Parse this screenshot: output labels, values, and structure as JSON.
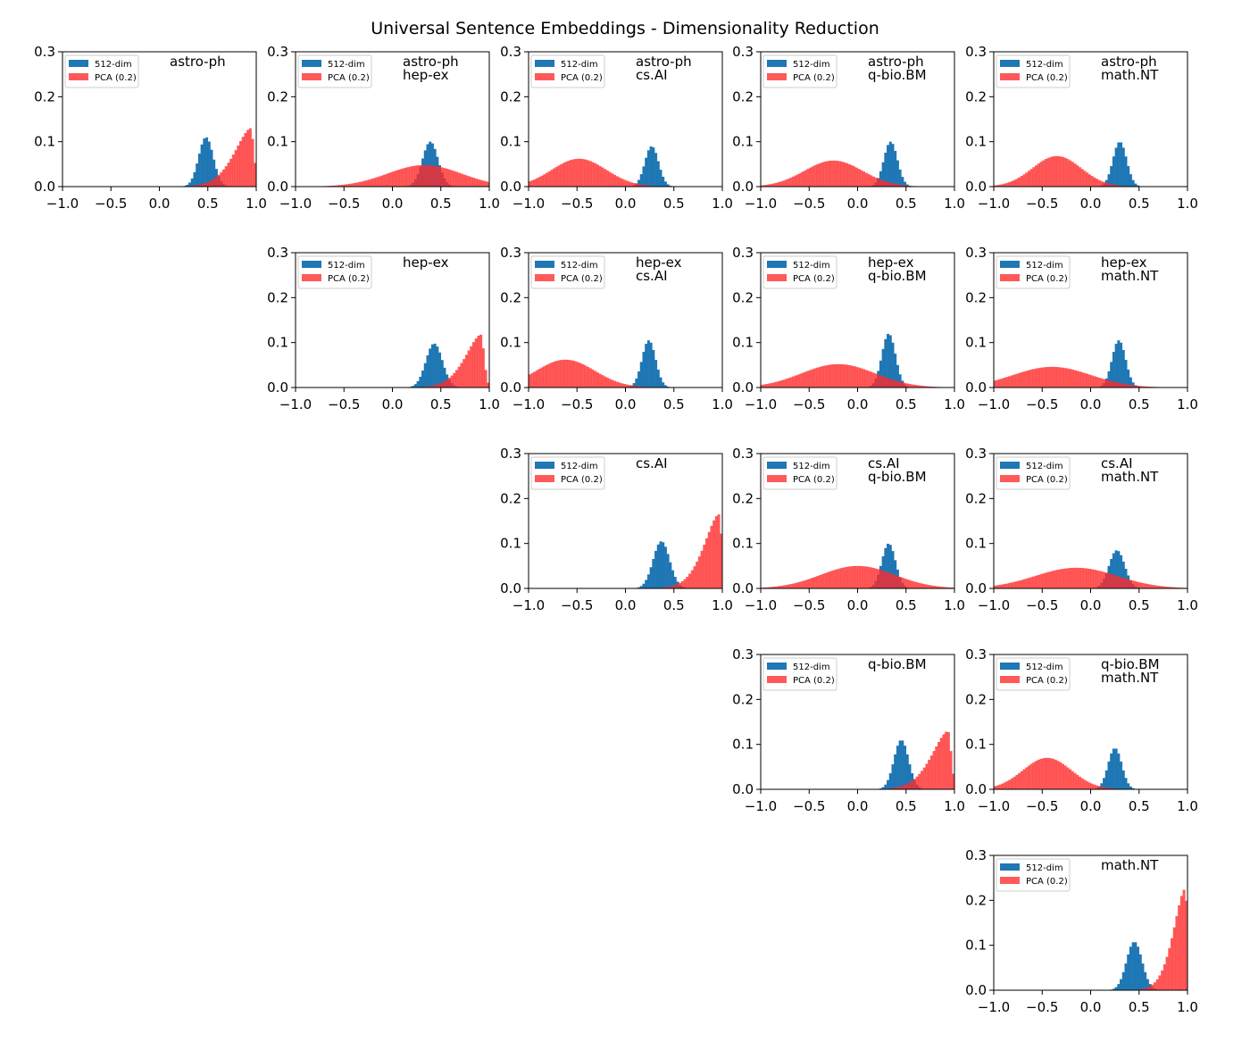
{
  "figure": {
    "title": "Universal Sentence Embeddings - Dimensionality Reduction",
    "colors": {
      "series_512": "#1f77b4",
      "series_pca": "#ff2a2a",
      "axes": "#000000"
    }
  },
  "chart_data": [
    {
      "type": "bar",
      "row": 0,
      "col": 0,
      "label_lines": [
        "astro-ph"
      ],
      "xlim": [
        -1.0,
        1.0
      ],
      "ylim": [
        0,
        0.3
      ],
      "xticks": [
        "−1.0",
        "−0.5",
        "0.0",
        "0.5",
        "1.0"
      ],
      "yticks": [
        "0.0",
        "0.1",
        "0.2",
        "0.3"
      ],
      "legend": [
        "512-dim",
        "PCA (0.2)"
      ],
      "series": [
        {
          "name": "512-dim",
          "kind": "gauss",
          "mu": 0.48,
          "sigma": 0.075,
          "peak": 0.11
        },
        {
          "name": "PCA (0.2)",
          "kind": "skew",
          "mode": 0.94,
          "width": 0.4,
          "peak": 0.13
        }
      ]
    },
    {
      "type": "bar",
      "row": 0,
      "col": 1,
      "label_lines": [
        "astro-ph",
        "hep-ex"
      ],
      "xlim": [
        -1.0,
        1.0
      ],
      "ylim": [
        0,
        0.3
      ],
      "xticks": [
        "−1.0",
        "−0.5",
        "0.0",
        "0.5",
        "1.0"
      ],
      "yticks": [
        "0.0",
        "0.1",
        "0.2",
        "0.3"
      ],
      "legend": [
        "512-dim",
        "PCA (0.2)"
      ],
      "series": [
        {
          "name": "512-dim",
          "kind": "gauss",
          "mu": 0.39,
          "sigma": 0.08,
          "peak": 0.1
        },
        {
          "name": "PCA (0.2)",
          "kind": "gauss",
          "mu": 0.33,
          "sigma": 0.38,
          "peak": 0.048
        }
      ]
    },
    {
      "type": "bar",
      "row": 0,
      "col": 2,
      "label_lines": [
        "astro-ph",
        "cs.AI"
      ],
      "xlim": [
        -1.0,
        1.0
      ],
      "ylim": [
        0,
        0.3
      ],
      "xticks": [
        "−1.0",
        "−0.5",
        "0.0",
        "0.5",
        "1.0"
      ],
      "yticks": [
        "0.0",
        "0.1",
        "0.2",
        "0.3"
      ],
      "legend": [
        "512-dim",
        "PCA (0.2)"
      ],
      "series": [
        {
          "name": "512-dim",
          "kind": "gauss",
          "mu": 0.27,
          "sigma": 0.07,
          "peak": 0.09
        },
        {
          "name": "PCA (0.2)",
          "kind": "gauss",
          "mu": -0.48,
          "sigma": 0.28,
          "peak": 0.062
        }
      ]
    },
    {
      "type": "bar",
      "row": 0,
      "col": 3,
      "label_lines": [
        "astro-ph",
        "q-bio.BM"
      ],
      "xlim": [
        -1.0,
        1.0
      ],
      "ylim": [
        0,
        0.3
      ],
      "xticks": [
        "−1.0",
        "−0.5",
        "0.0",
        "0.5",
        "1.0"
      ],
      "yticks": [
        "0.0",
        "0.1",
        "0.2",
        "0.3"
      ],
      "legend": [
        "512-dim",
        "PCA (0.2)"
      ],
      "series": [
        {
          "name": "512-dim",
          "kind": "gauss",
          "mu": 0.34,
          "sigma": 0.07,
          "peak": 0.1
        },
        {
          "name": "PCA (0.2)",
          "kind": "gauss",
          "mu": -0.25,
          "sigma": 0.3,
          "peak": 0.058
        }
      ]
    },
    {
      "type": "bar",
      "row": 0,
      "col": 4,
      "label_lines": [
        "astro-ph",
        "math.NT"
      ],
      "xlim": [
        -1.0,
        1.0
      ],
      "ylim": [
        0,
        0.3
      ],
      "xticks": [
        "−1.0",
        "−0.5",
        "0.0",
        "0.5",
        "1.0"
      ],
      "yticks": [
        "0.0",
        "0.1",
        "0.2",
        "0.3"
      ],
      "legend": [
        "512-dim",
        "PCA (0.2)"
      ],
      "series": [
        {
          "name": "512-dim",
          "kind": "gauss",
          "mu": 0.3,
          "sigma": 0.07,
          "peak": 0.1
        },
        {
          "name": "PCA (0.2)",
          "kind": "gauss",
          "mu": -0.35,
          "sigma": 0.25,
          "peak": 0.068
        }
      ]
    },
    {
      "type": "bar",
      "row": 1,
      "col": 1,
      "label_lines": [
        "hep-ex"
      ],
      "xlim": [
        -1.0,
        1.0
      ],
      "ylim": [
        0,
        0.3
      ],
      "xticks": [
        "−1.0",
        "−0.5",
        "0.0",
        "0.5",
        "1.0"
      ],
      "yticks": [
        "0.0",
        "0.1",
        "0.2",
        "0.3"
      ],
      "legend": [
        "512-dim",
        "PCA (0.2)"
      ],
      "series": [
        {
          "name": "512-dim",
          "kind": "gauss",
          "mu": 0.43,
          "sigma": 0.085,
          "peak": 0.098
        },
        {
          "name": "PCA (0.2)",
          "kind": "skew",
          "mode": 0.91,
          "width": 0.38,
          "peak": 0.118
        }
      ]
    },
    {
      "type": "bar",
      "row": 1,
      "col": 2,
      "label_lines": [
        "hep-ex",
        "cs.AI"
      ],
      "xlim": [
        -1.0,
        1.0
      ],
      "ylim": [
        0,
        0.3
      ],
      "xticks": [
        "−1.0",
        "−0.5",
        "0.0",
        "0.5",
        "1.0"
      ],
      "yticks": [
        "0.0",
        "0.1",
        "0.2",
        "0.3"
      ],
      "legend": [
        "512-dim",
        "PCA (0.2)"
      ],
      "series": [
        {
          "name": "512-dim",
          "kind": "gauss",
          "mu": 0.24,
          "sigma": 0.07,
          "peak": 0.105
        },
        {
          "name": "PCA (0.2)",
          "kind": "gauss",
          "mu": -0.62,
          "sigma": 0.3,
          "peak": 0.062
        }
      ]
    },
    {
      "type": "bar",
      "row": 1,
      "col": 3,
      "label_lines": [
        "hep-ex",
        "q-bio.BM"
      ],
      "xlim": [
        -1.0,
        1.0
      ],
      "ylim": [
        0,
        0.3
      ],
      "xticks": [
        "−1.0",
        "−0.5",
        "0.0",
        "0.5",
        "1.0"
      ],
      "yticks": [
        "0.0",
        "0.1",
        "0.2",
        "0.3"
      ],
      "legend": [
        "512-dim",
        "PCA (0.2)"
      ],
      "series": [
        {
          "name": "512-dim",
          "kind": "gauss",
          "mu": 0.32,
          "sigma": 0.07,
          "peak": 0.12
        },
        {
          "name": "PCA (0.2)",
          "kind": "gauss",
          "mu": -0.2,
          "sigma": 0.38,
          "peak": 0.052
        }
      ]
    },
    {
      "type": "bar",
      "row": 1,
      "col": 4,
      "label_lines": [
        "hep-ex",
        "math.NT"
      ],
      "xlim": [
        -1.0,
        1.0
      ],
      "ylim": [
        0,
        0.3
      ],
      "xticks": [
        "−1.0",
        "−0.5",
        "0.0",
        "0.5",
        "1.0"
      ],
      "yticks": [
        "0.0",
        "0.1",
        "0.2",
        "0.3"
      ],
      "legend": [
        "512-dim",
        "PCA (0.2)"
      ],
      "series": [
        {
          "name": "512-dim",
          "kind": "gauss",
          "mu": 0.29,
          "sigma": 0.07,
          "peak": 0.105
        },
        {
          "name": "PCA (0.2)",
          "kind": "gauss",
          "mu": -0.4,
          "sigma": 0.4,
          "peak": 0.046
        }
      ]
    },
    {
      "type": "bar",
      "row": 2,
      "col": 2,
      "label_lines": [
        "cs.AI"
      ],
      "xlim": [
        -1.0,
        1.0
      ],
      "ylim": [
        0,
        0.3
      ],
      "xticks": [
        "−1.0",
        "−0.5",
        "0.0",
        "0.5",
        "1.0"
      ],
      "yticks": [
        "0.0",
        "0.1",
        "0.2",
        "0.3"
      ],
      "legend": [
        "512-dim",
        "PCA (0.2)"
      ],
      "series": [
        {
          "name": "512-dim",
          "kind": "gauss",
          "mu": 0.37,
          "sigma": 0.085,
          "peak": 0.105
        },
        {
          "name": "PCA (0.2)",
          "kind": "skew",
          "mode": 0.96,
          "width": 0.36,
          "peak": 0.165
        }
      ]
    },
    {
      "type": "bar",
      "row": 2,
      "col": 3,
      "label_lines": [
        "cs.AI",
        "q-bio.BM"
      ],
      "xlim": [
        -1.0,
        1.0
      ],
      "ylim": [
        0,
        0.3
      ],
      "xticks": [
        "−1.0",
        "−0.5",
        "0.0",
        "0.5",
        "1.0"
      ],
      "yticks": [
        "0.0",
        "0.1",
        "0.2",
        "0.3"
      ],
      "legend": [
        "512-dim",
        "PCA (0.2)"
      ],
      "series": [
        {
          "name": "512-dim",
          "kind": "gauss",
          "mu": 0.32,
          "sigma": 0.07,
          "peak": 0.1
        },
        {
          "name": "PCA (0.2)",
          "kind": "gauss",
          "mu": 0.0,
          "sigma": 0.38,
          "peak": 0.05
        }
      ]
    },
    {
      "type": "bar",
      "row": 2,
      "col": 4,
      "label_lines": [
        "cs.AI",
        "math.NT"
      ],
      "xlim": [
        -1.0,
        1.0
      ],
      "ylim": [
        0,
        0.3
      ],
      "xticks": [
        "−1.0",
        "−0.5",
        "0.0",
        "0.5",
        "1.0"
      ],
      "yticks": [
        "0.0",
        "0.1",
        "0.2",
        "0.3"
      ],
      "legend": [
        "512-dim",
        "PCA (0.2)"
      ],
      "series": [
        {
          "name": "512-dim",
          "kind": "gauss",
          "mu": 0.27,
          "sigma": 0.08,
          "peak": 0.085
        },
        {
          "name": "PCA (0.2)",
          "kind": "gauss",
          "mu": -0.15,
          "sigma": 0.42,
          "peak": 0.046
        }
      ]
    },
    {
      "type": "bar",
      "row": 3,
      "col": 3,
      "label_lines": [
        "q-bio.BM"
      ],
      "xlim": [
        -1.0,
        1.0
      ],
      "ylim": [
        0,
        0.3
      ],
      "xticks": [
        "−1.0",
        "−0.5",
        "0.0",
        "0.5",
        "1.0"
      ],
      "yticks": [
        "0.0",
        "0.1",
        "0.2",
        "0.3"
      ],
      "legend": [
        "512-dim",
        "PCA (0.2)"
      ],
      "series": [
        {
          "name": "512-dim",
          "kind": "gauss",
          "mu": 0.45,
          "sigma": 0.075,
          "peak": 0.11
        },
        {
          "name": "PCA (0.2)",
          "kind": "skew",
          "mode": 0.93,
          "width": 0.4,
          "peak": 0.13
        }
      ]
    },
    {
      "type": "bar",
      "row": 3,
      "col": 4,
      "label_lines": [
        "q-bio.BM",
        "math.NT"
      ],
      "xlim": [
        -1.0,
        1.0
      ],
      "ylim": [
        0,
        0.3
      ],
      "xticks": [
        "−1.0",
        "−0.5",
        "0.0",
        "0.5",
        "1.0"
      ],
      "yticks": [
        "0.0",
        "0.1",
        "0.2",
        "0.3"
      ],
      "legend": [
        "512-dim",
        "PCA (0.2)"
      ],
      "series": [
        {
          "name": "512-dim",
          "kind": "gauss",
          "mu": 0.25,
          "sigma": 0.07,
          "peak": 0.092
        },
        {
          "name": "PCA (0.2)",
          "kind": "gauss",
          "mu": -0.45,
          "sigma": 0.25,
          "peak": 0.07
        }
      ]
    },
    {
      "type": "bar",
      "row": 4,
      "col": 4,
      "label_lines": [
        "math.NT"
      ],
      "xlim": [
        -1.0,
        1.0
      ],
      "ylim": [
        0,
        0.3
      ],
      "xticks": [
        "−1.0",
        "−0.5",
        "0.0",
        "0.5",
        "1.0"
      ],
      "yticks": [
        "0.0",
        "0.1",
        "0.2",
        "0.3"
      ],
      "legend": [
        "512-dim",
        "PCA (0.2)"
      ],
      "series": [
        {
          "name": "512-dim",
          "kind": "gauss",
          "mu": 0.45,
          "sigma": 0.08,
          "peak": 0.108
        },
        {
          "name": "PCA (0.2)",
          "kind": "skew",
          "mode": 0.97,
          "width": 0.28,
          "peak": 0.225
        }
      ]
    }
  ]
}
